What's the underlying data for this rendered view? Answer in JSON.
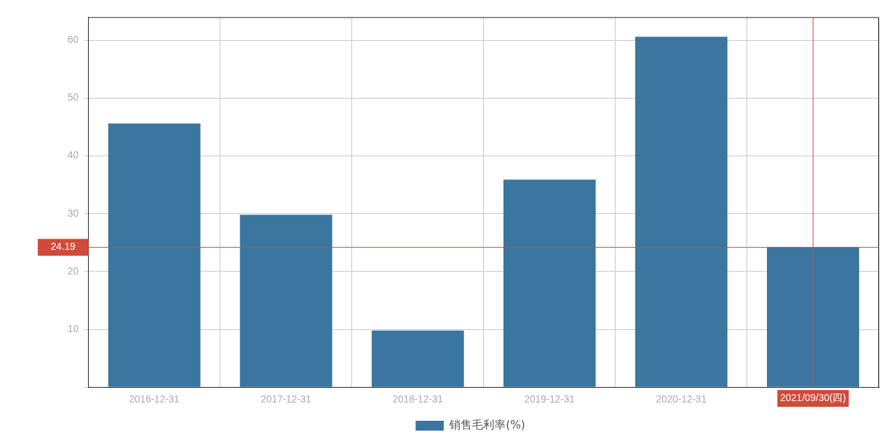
{
  "chart_data": {
    "type": "bar",
    "categories": [
      "2016-12-31",
      "2017-12-31",
      "2018-12-31",
      "2019-12-31",
      "2020-12-31",
      "2021/09/30(四)"
    ],
    "series": [
      {
        "name": "销售毛利率(%)",
        "color": "#3a76a0",
        "values": [
          45.6,
          29.8,
          9.8,
          35.9,
          60.6,
          24.19
        ]
      }
    ],
    "ylim": [
      0,
      64
    ],
    "yticks": [
      {
        "value": 0,
        "label": null
      },
      10,
      20,
      30,
      40,
      50,
      60
    ],
    "grid": true,
    "legend": "bottom",
    "ref_lines": [
      {
        "axis": "y",
        "value": 24.19,
        "label": "24.19",
        "color": "#d04a3a"
      },
      {
        "axis": "x",
        "value": "2021/09/30(四)",
        "color": "#d04a3a"
      }
    ]
  }
}
